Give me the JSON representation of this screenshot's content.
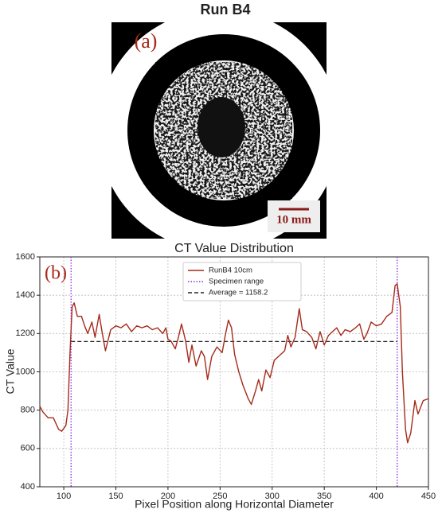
{
  "figure": {
    "title": "Run B4",
    "panel_a": {
      "label": "(a)",
      "scale_bar": "10 mm"
    }
  },
  "chart_data": {
    "type": "line",
    "title": "CT Value Distribution",
    "panel_label": "(b)",
    "x_label": "Pixel Position along Horizontal Diameter",
    "y_label": "CT Value",
    "x": [
      77,
      80,
      85,
      90,
      95,
      98,
      102,
      104,
      106,
      108,
      110,
      113,
      117,
      120,
      123,
      127,
      130,
      134,
      137,
      140,
      145,
      150,
      155,
      160,
      165,
      170,
      175,
      180,
      185,
      190,
      195,
      198,
      200,
      203,
      207,
      210,
      213,
      217,
      220,
      223,
      227,
      232,
      235,
      238,
      242,
      247,
      252,
      255,
      258,
      261,
      264,
      268,
      272,
      277,
      280,
      284,
      287,
      290,
      294,
      298,
      302,
      306,
      312,
      315,
      318,
      322,
      326,
      329,
      333,
      338,
      342,
      346,
      350,
      354,
      358,
      362,
      366,
      370,
      375,
      380,
      384,
      388,
      391,
      395,
      400,
      405,
      410,
      415,
      418,
      420,
      423,
      425,
      428,
      430,
      433,
      437,
      440,
      445,
      450
    ],
    "series": [
      {
        "name": "RunB4 10cm",
        "color": "#a52a1a",
        "values": [
          820,
          790,
          760,
          760,
          700,
          690,
          720,
          800,
          1100,
          1340,
          1360,
          1290,
          1290,
          1240,
          1200,
          1260,
          1180,
          1300,
          1200,
          1110,
          1220,
          1240,
          1230,
          1250,
          1210,
          1240,
          1230,
          1240,
          1220,
          1230,
          1200,
          1230,
          1170,
          1160,
          1120,
          1180,
          1250,
          1160,
          1050,
          1140,
          1030,
          1110,
          1080,
          960,
          1080,
          1130,
          1100,
          1190,
          1270,
          1230,
          1090,
          1000,
          930,
          860,
          830,
          900,
          960,
          900,
          1010,
          970,
          1060,
          1080,
          1110,
          1190,
          1130,
          1180,
          1330,
          1220,
          1210,
          1180,
          1120,
          1210,
          1140,
          1190,
          1210,
          1230,
          1190,
          1220,
          1210,
          1230,
          1250,
          1170,
          1200,
          1260,
          1240,
          1250,
          1290,
          1310,
          1450,
          1460,
          1340,
          1000,
          700,
          630,
          680,
          850,
          780,
          850,
          860
        ]
      }
    ],
    "specimen_range": {
      "name": "Specimen range",
      "color": "#8a2be2",
      "x": [
        107,
        420
      ]
    },
    "average": {
      "name": "Average = 1158.2",
      "color": "#222222",
      "value": 1158.2
    },
    "xlim": [
      77,
      450
    ],
    "xticks": [
      100,
      150,
      200,
      250,
      300,
      350,
      400,
      450
    ],
    "ylim": [
      400,
      1600
    ],
    "yticks": [
      400,
      600,
      800,
      1000,
      1200,
      1400,
      1600
    ],
    "grid": true
  }
}
